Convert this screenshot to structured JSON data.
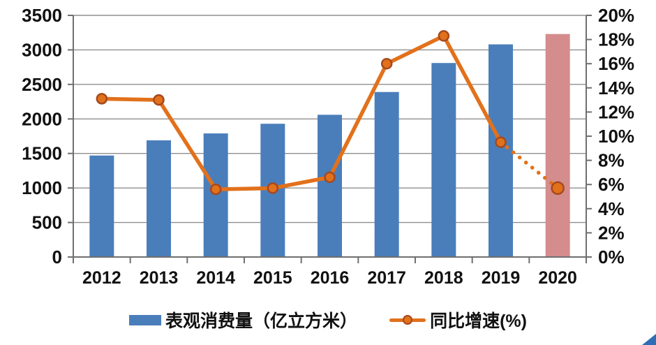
{
  "legend": {
    "bar_label": "表观消费量（亿立方米）",
    "line_label": "同比增速(%)"
  },
  "chart_data": {
    "type": "combo-bar-line",
    "title": "",
    "categories": [
      "2012",
      "2013",
      "2014",
      "2015",
      "2016",
      "2017",
      "2018",
      "2019",
      "2020"
    ],
    "series": [
      {
        "name": "表观消费量（亿立方米）",
        "type": "bar",
        "axis": "left",
        "values": [
          1470,
          1690,
          1790,
          1930,
          2060,
          2390,
          2810,
          3080,
          3230
        ],
        "color": "#4A7EBB",
        "forecast_index": 8,
        "forecast_color": "#D58C8C"
      },
      {
        "name": "同比增速(%)",
        "type": "line",
        "axis": "right",
        "values": [
          13.1,
          13.0,
          5.6,
          5.7,
          6.6,
          16.0,
          18.3,
          9.5,
          5.7
        ],
        "color": "#E2711B",
        "marker_border_color": "#A5491F",
        "dotted_from_index": 7
      }
    ],
    "left_axis": {
      "min": 0,
      "max": 3500,
      "step": 500,
      "tick_labels": [
        "0",
        "500",
        "1000",
        "1500",
        "2000",
        "2500",
        "3000",
        "3500"
      ]
    },
    "right_axis": {
      "min": 0,
      "max": 20,
      "step": 2,
      "tick_labels": [
        "0%",
        "2%",
        "4%",
        "6%",
        "8%",
        "10%",
        "12%",
        "14%",
        "16%",
        "18%",
        "20%"
      ]
    },
    "grid": true,
    "legend_position": "bottom"
  },
  "colors": {
    "grid": "#8F8F8F",
    "axis": "#6F6F6F",
    "text": "#111111",
    "background": "#FFFFFF",
    "corner_triangle": "#2F6EB5"
  }
}
